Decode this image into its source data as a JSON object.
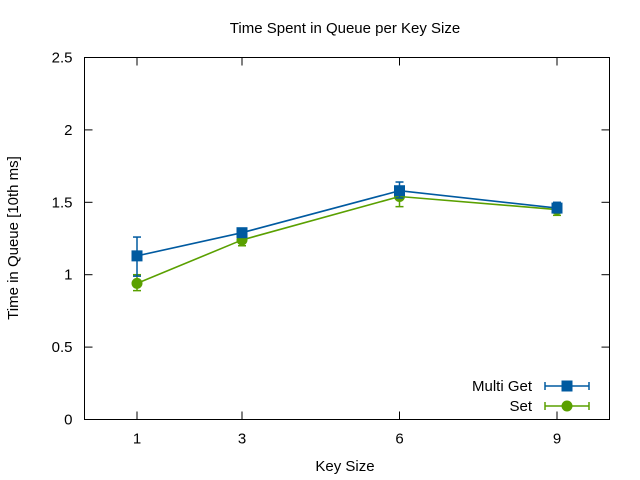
{
  "chart_data": {
    "type": "line",
    "title": "Time Spent in Queue per Key Size",
    "xlabel": "Key Size",
    "ylabel": "Time in Queue [10th ms]",
    "x": [
      1,
      3,
      6,
      9
    ],
    "x_ticks": [
      "1",
      "3",
      "6",
      "9"
    ],
    "xlim": [
      0,
      10
    ],
    "ylim": [
      0,
      2.5
    ],
    "y_ticks": [
      "0",
      "0.5",
      "1",
      "1.5",
      "2",
      "2.5"
    ],
    "y_tick_values": [
      0,
      0.5,
      1,
      1.5,
      2,
      2.5
    ],
    "grid": false,
    "legend_position": "bottom-right",
    "series": [
      {
        "name": "Multi Get",
        "color": "#005aa0",
        "marker": "square",
        "values": [
          1.13,
          1.29,
          1.58,
          1.46
        ],
        "err_low": [
          0.99,
          1.27,
          1.53,
          1.43
        ],
        "err_high": [
          1.26,
          1.32,
          1.64,
          1.5
        ]
      },
      {
        "name": "Set",
        "color": "#5aa000",
        "marker": "circle",
        "values": [
          0.94,
          1.24,
          1.54,
          1.45
        ],
        "err_low": [
          0.89,
          1.2,
          1.47,
          1.41
        ],
        "err_high": [
          1.0,
          1.28,
          1.58,
          1.48
        ]
      }
    ]
  }
}
